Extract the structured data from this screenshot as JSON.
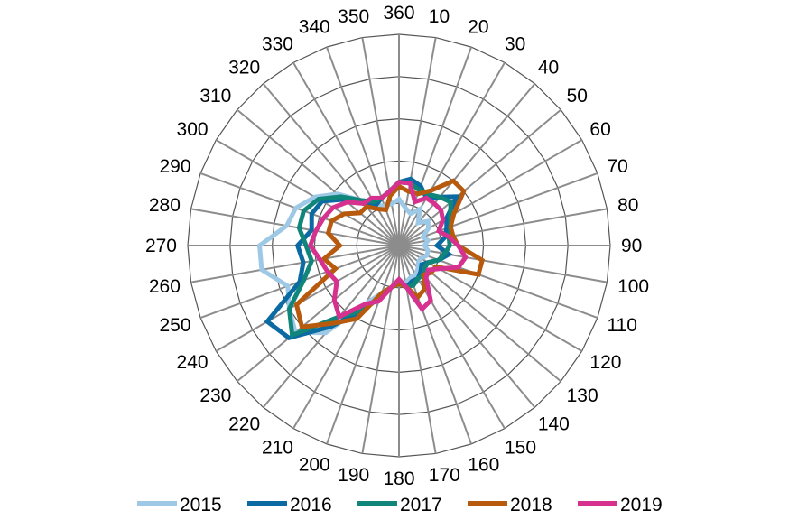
{
  "chart_data": {
    "type": "radar",
    "title": "",
    "categories": [
      "10",
      "20",
      "30",
      "40",
      "50",
      "60",
      "70",
      "80",
      "90",
      "100",
      "110",
      "120",
      "130",
      "140",
      "150",
      "160",
      "170",
      "180",
      "190",
      "200",
      "210",
      "220",
      "230",
      "240",
      "250",
      "260",
      "270",
      "280",
      "290",
      "300",
      "310",
      "320",
      "330",
      "340",
      "350",
      "360"
    ],
    "rlim": [
      0,
      5
    ],
    "grid": true,
    "legend_position": "bottom",
    "series": [
      {
        "name": "2015",
        "color": "#9dc9e6",
        "values": [
          0.9,
          0.8,
          1.0,
          0.7,
          0.9,
          0.8,
          0.6,
          0.7,
          0.6,
          0.7,
          0.7,
          0.6,
          0.6,
          0.7,
          0.8,
          0.8,
          0.9,
          0.9,
          1.0,
          1.2,
          1.6,
          2.7,
          3.2,
          3.0,
          2.8,
          3.3,
          3.3,
          2.7,
          2.6,
          2.3,
          1.9,
          1.4,
          1.1,
          1.0,
          1.0,
          1.1
        ]
      },
      {
        "name": "2016",
        "color": "#0a6aa1",
        "values": [
          1.6,
          1.5,
          1.3,
          1.5,
          1.8,
          1.3,
          1.2,
          1.1,
          0.9,
          1.2,
          1.0,
          0.8,
          0.7,
          0.8,
          0.9,
          0.9,
          1.0,
          0.9,
          1.0,
          1.3,
          1.8,
          2.5,
          3.4,
          3.6,
          2.5,
          2.3,
          2.4,
          2.1,
          2.2,
          2.1,
          1.7,
          1.3,
          1.1,
          1.2,
          1.3,
          1.5
        ]
      },
      {
        "name": "2017",
        "color": "#10857a",
        "values": [
          1.5,
          1.4,
          1.4,
          1.5,
          1.6,
          1.4,
          1.3,
          1.2,
          1.2,
          1.1,
          1.0,
          0.8,
          0.8,
          0.9,
          0.9,
          1.0,
          1.0,
          0.9,
          1.0,
          1.3,
          1.8,
          2.2,
          3.3,
          3.0,
          2.4,
          2.1,
          2.2,
          2.4,
          2.4,
          2.2,
          1.8,
          1.4,
          1.2,
          1.2,
          1.3,
          1.5
        ]
      },
      {
        "name": "2018",
        "color": "#b85a0d",
        "values": [
          1.3,
          1.3,
          1.5,
          2.0,
          2.0,
          1.5,
          1.3,
          1.3,
          1.4,
          2.0,
          2.0,
          1.0,
          1.0,
          0.9,
          1.2,
          1.3,
          1.0,
          0.9,
          1.0,
          1.2,
          2.0,
          2.4,
          3.0,
          2.8,
          1.6,
          1.8,
          1.4,
          1.7,
          1.7,
          1.5,
          1.2,
          1.2,
          1.0,
          0.9,
          1.2,
          1.4
        ]
      },
      {
        "name": "2019",
        "color": "#d6318f",
        "values": [
          1.5,
          1.1,
          1.3,
          1.3,
          1.3,
          1.2,
          1.0,
          1.2,
          1.4,
          1.6,
          1.5,
          1.1,
          0.9,
          1.0,
          1.5,
          1.6,
          1.0,
          0.8,
          1.0,
          1.4,
          1.6,
          2.2,
          2.0,
          1.7,
          1.8,
          1.9,
          2.1,
          2.0,
          1.9,
          1.8,
          1.6,
          1.3,
          1.3,
          1.2,
          1.3,
          1.5
        ]
      }
    ]
  }
}
